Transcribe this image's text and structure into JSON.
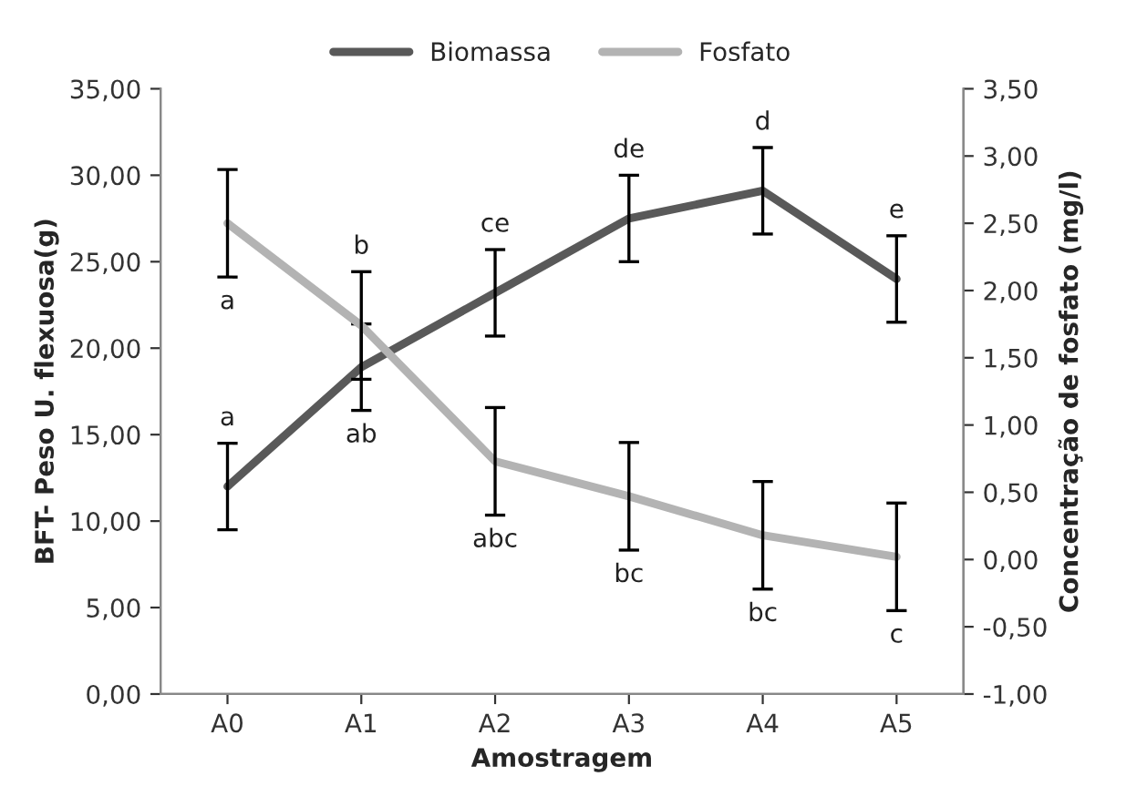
{
  "chart_data": {
    "type": "line",
    "xlabel": "Amostragem",
    "ylabel": "BFT- Peso U. flexuosa(g)",
    "y2label": "Concentração de fosfato (mg/l)",
    "categories": [
      "A0",
      "A1",
      "A2",
      "A3",
      "A4",
      "A5"
    ],
    "series": [
      {
        "name": "Biomassa",
        "color": "#595959",
        "values": [
          12.0,
          18.9,
          23.2,
          27.5,
          29.1,
          24.0
        ],
        "errors": [
          2.5,
          2.5,
          2.5,
          2.5,
          2.5,
          2.5
        ],
        "value_labels": [
          "a",
          "ab",
          "ce",
          "de",
          "d",
          "e"
        ]
      },
      {
        "name": "Fosfato",
        "color": "#b3b3b3",
        "axis": "y2",
        "values": [
          2.5,
          1.74,
          0.73,
          0.47,
          0.18,
          0.02
        ],
        "errors": [
          0.4,
          0.4,
          0.4,
          0.4,
          0.4,
          0.4
        ],
        "value_labels": [
          "a",
          "b",
          "abc",
          "bc",
          "bc",
          "c"
        ]
      }
    ],
    "ylim": [
      0,
      35
    ],
    "yticks": [
      {
        "value": 0,
        "label": "0,00"
      },
      {
        "value": 5,
        "label": "5,00"
      },
      {
        "value": 10,
        "label": "10,00"
      },
      {
        "value": 15,
        "label": "15,00"
      },
      {
        "value": 20,
        "label": "20,00"
      },
      {
        "value": 25,
        "label": "25,00"
      },
      {
        "value": 30,
        "label": "30,00"
      },
      {
        "value": 35,
        "label": "35,00"
      }
    ],
    "y2lim": [
      -1,
      3.5
    ],
    "y2ticks": [
      {
        "value": -1,
        "label": "-1,00"
      },
      {
        "value": -0.5,
        "label": "-0,50"
      },
      {
        "value": 0,
        "label": "0,00"
      },
      {
        "value": 0.5,
        "label": "0,50"
      },
      {
        "value": 1,
        "label": "1,00"
      },
      {
        "value": 1.5,
        "label": "1,50"
      },
      {
        "value": 2,
        "label": "2,00"
      },
      {
        "value": 2.5,
        "label": "2,50"
      },
      {
        "value": 3,
        "label": "3,00"
      },
      {
        "value": 3.5,
        "label": "3,50"
      }
    ],
    "grid": false,
    "legend": "top",
    "marker": "none",
    "line_style": "solid"
  }
}
